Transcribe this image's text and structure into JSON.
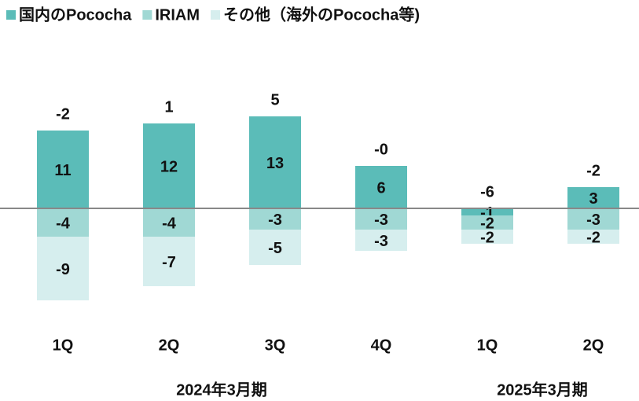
{
  "chart_data": {
    "type": "bar",
    "stacked": true,
    "categories": [
      "1Q",
      "2Q",
      "3Q",
      "4Q",
      "1Q",
      "2Q"
    ],
    "groups": [
      "2024年3月期",
      "2025年3月期"
    ],
    "series": [
      {
        "name": "国内のPococha",
        "color": "#5bbcb8",
        "values": [
          11,
          12,
          13,
          6,
          -1,
          3
        ]
      },
      {
        "name": "IRIAM",
        "color": "#a0d8d4",
        "values": [
          -4,
          -4,
          -3,
          -3,
          -2,
          -3
        ]
      },
      {
        "name": "その他（海外のPococha等)",
        "color": "#d6eeee",
        "values": [
          -9,
          -7,
          -5,
          -3,
          -2,
          -2
        ]
      }
    ],
    "totals": [
      -2,
      1,
      5,
      0,
      -6,
      -2
    ],
    "total_labels": [
      "-2",
      "1",
      "5",
      "-0",
      "-6",
      "-2"
    ]
  }
}
